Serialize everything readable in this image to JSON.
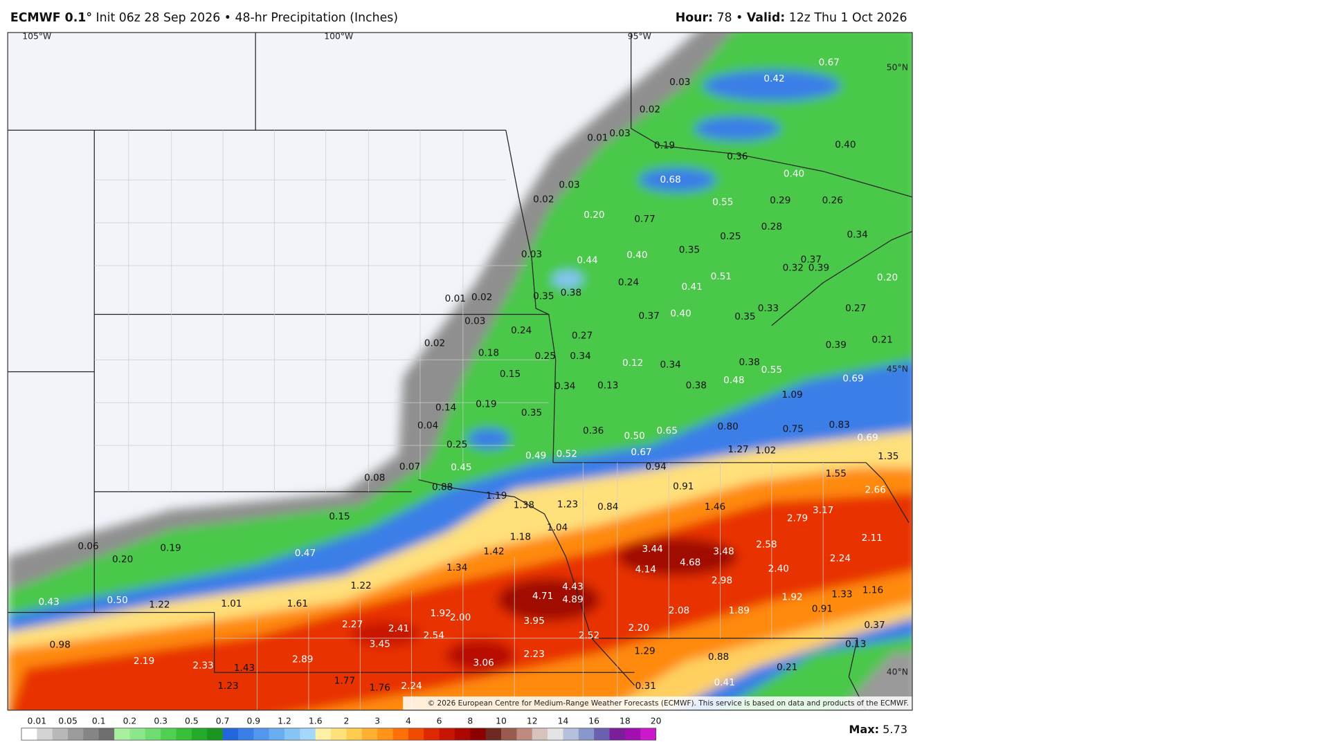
{
  "header": {
    "model": "ECMWF 0.1°",
    "title": "Init 06z 28 Sep 2026 • 48-hr Precipitation (Inches)",
    "hour_label": "Hour:",
    "hour": "78",
    "separator": "•",
    "valid_label": "Valid:",
    "valid": "12z Thu 1 Oct 2026"
  },
  "map": {
    "graticule": [
      "105°W",
      "100°W",
      "95°W",
      "50°N",
      "45°N",
      "40°N"
    ],
    "labels": [
      "0.67",
      "0.42",
      "0.03",
      "0.02",
      "0.01",
      "0.03",
      "0.19",
      "0.36",
      "0.40",
      "0.40",
      "0.68",
      "0.03",
      "0.02",
      "0.55",
      "0.29",
      "0.26",
      "0.20",
      "0.77",
      "0.25",
      "0.28",
      "0.34",
      "0.03",
      "0.44",
      "0.40",
      "0.35",
      "0.37",
      "0.32",
      "0.39",
      "0.20",
      "0.24",
      "0.41",
      "0.51",
      "0.01",
      "0.02",
      "0.35",
      "0.38",
      "0.33",
      "0.27",
      "0.37",
      "0.40",
      "0.35",
      "0.03",
      "0.24",
      "0.27",
      "0.02",
      "0.18",
      "0.25",
      "0.34",
      "0.12",
      "0.34",
      "0.38",
      "0.39",
      "0.21",
      "0.15",
      "0.34",
      "0.13",
      "0.38",
      "0.48",
      "0.55",
      "0.69",
      "1.09",
      "0.14",
      "0.19",
      "0.35",
      "0.04",
      "0.36",
      "0.50",
      "0.65",
      "0.80",
      "0.75",
      "0.83",
      "0.69",
      "0.25",
      "0.49",
      "0.52",
      "0.67",
      "1.27",
      "1.02",
      "1.35",
      "0.07",
      "0.45",
      "0.94",
      "0.08",
      "0.88",
      "0.91",
      "1.55",
      "2.66",
      "1.19",
      "1.38",
      "1.23",
      "0.84",
      "1.46",
      "2.79",
      "3.17",
      "0.15",
      "1.04",
      "1.18",
      "2.11",
      "0.06",
      "0.19",
      "3.44",
      "3.48",
      "2.58",
      "0.20",
      "0.47",
      "1.42",
      "4.68",
      "4.14",
      "2.40",
      "2.24",
      "1.34",
      "2.98",
      "4.43",
      "4.71",
      "4.89",
      "1.22",
      "1.33",
      "1.16",
      "0.43",
      "0.50",
      "1.22",
      "1.01",
      "1.61",
      "1.92",
      "0.91",
      "1.92",
      "2.00",
      "2.08",
      "1.89",
      "2.27",
      "3.95",
      "0.37",
      "2.41",
      "2.20",
      "2.54",
      "2.52",
      "0.98",
      "3.45",
      "0.13",
      "2.23",
      "1.29",
      "0.88",
      "2.19",
      "2.89",
      "3.06",
      "2.33",
      "1.43",
      "0.21",
      "1.77",
      "1.23",
      "0.31",
      "0.41",
      "1.76",
      "2.24"
    ],
    "copyright": "© 2026 European Centre for Medium-Range Weather Forecasts (ECMWF). This service is based on data and products of the ECMWF."
  },
  "colorbar": {
    "ticks": [
      "0.01",
      "0.05",
      "0.1",
      "0.2",
      "0.3",
      "0.5",
      "0.7",
      "0.9",
      "1.2",
      "1.6",
      "2",
      "3",
      "4",
      "6",
      "8",
      "10",
      "12",
      "14",
      "16",
      "18",
      "20"
    ],
    "colors": [
      "#ffffff",
      "#d4d4d4",
      "#b8b8b8",
      "#9c9c9c",
      "#858585",
      "#6e6e6e",
      "#a8f0a0",
      "#8ce68a",
      "#6edc70",
      "#50d050",
      "#38c038",
      "#22ac2a",
      "#1a9620",
      "#2266dd",
      "#3a7ee8",
      "#5296ee",
      "#6aaef2",
      "#86c4f6",
      "#a4d8fa",
      "#fff2a6",
      "#ffe07a",
      "#ffcc50",
      "#ffb030",
      "#ff9418",
      "#ff7008",
      "#f04a00",
      "#e02800",
      "#c81400",
      "#aa0800",
      "#8c0000",
      "#6e2a22",
      "#9a5a50",
      "#c08a80",
      "#d8c2be",
      "#e4e4e4",
      "#b4c0dc",
      "#8898cc",
      "#6a60b0",
      "#7a1e9a",
      "#a010b0",
      "#cc18cc"
    ],
    "max_label": "Max:",
    "max": "5.73"
  }
}
